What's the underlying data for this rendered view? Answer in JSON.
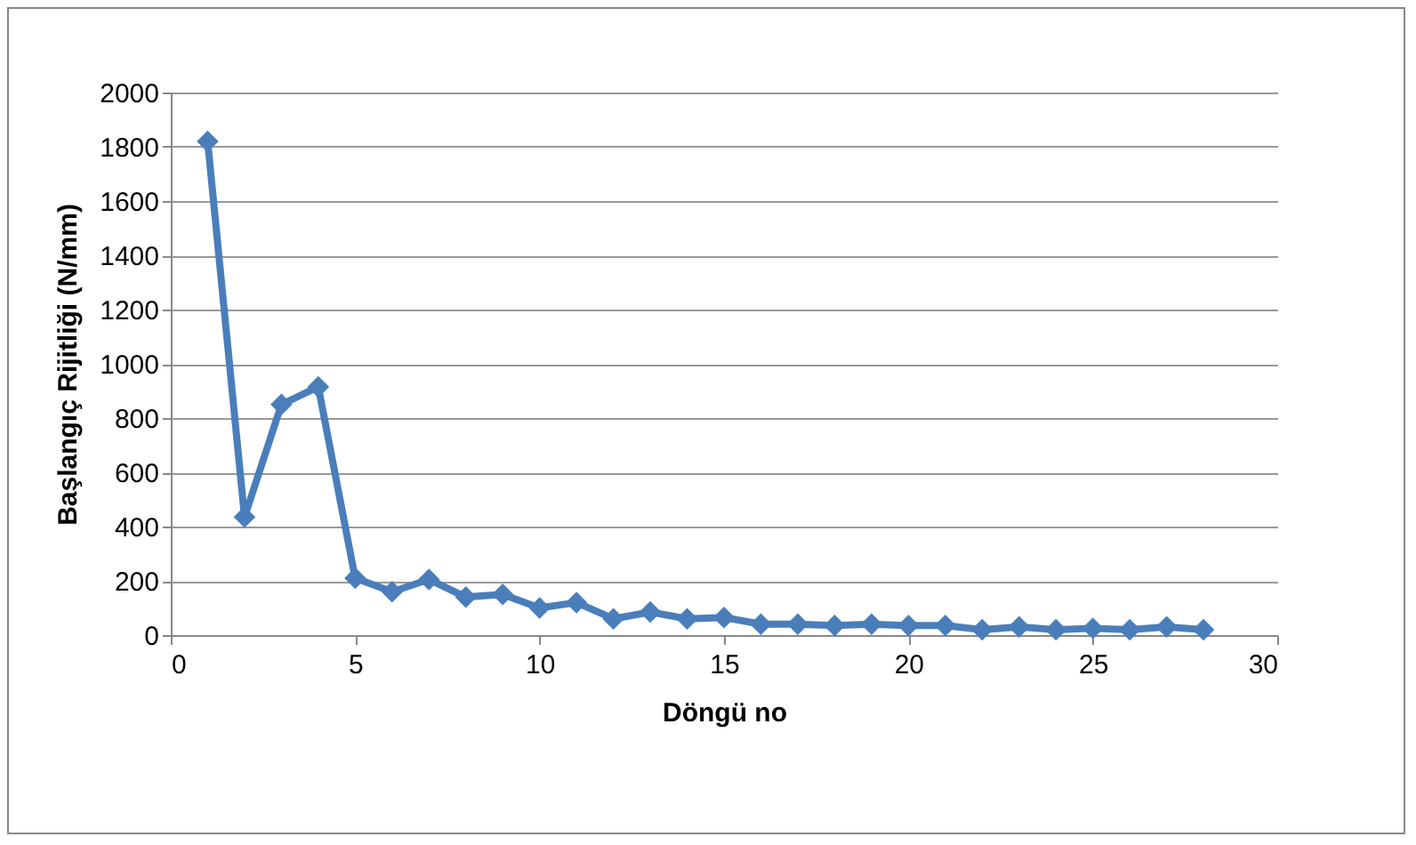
{
  "chart_data": {
    "type": "line",
    "xlabel": "Döngü no",
    "ylabel": "Başlangıç Rijitliği (N/mm)",
    "x": [
      1,
      2,
      3,
      4,
      5,
      6,
      7,
      8,
      9,
      10,
      11,
      12,
      13,
      14,
      15,
      16,
      17,
      18,
      19,
      20,
      21,
      22,
      23,
      24,
      25,
      26,
      27,
      28
    ],
    "series": [
      {
        "color": "#4a7ebb",
        "values": [
          1820,
          435,
          850,
          915,
          210,
          160,
          205,
          140,
          150,
          100,
          120,
          60,
          85,
          60,
          65,
          40,
          40,
          35,
          40,
          35,
          35,
          20,
          30,
          20,
          25,
          20,
          30,
          20
        ]
      }
    ],
    "xlim": [
      0,
      30
    ],
    "xticks": [
      0,
      5,
      10,
      15,
      20,
      25,
      30
    ],
    "ylim": [
      0,
      2000
    ],
    "yticks": [
      0,
      200,
      400,
      600,
      800,
      1000,
      1200,
      1400,
      1600,
      1800,
      2000
    ],
    "grid": "y",
    "legend": false,
    "marker": "diamond",
    "line_style": "solid"
  }
}
